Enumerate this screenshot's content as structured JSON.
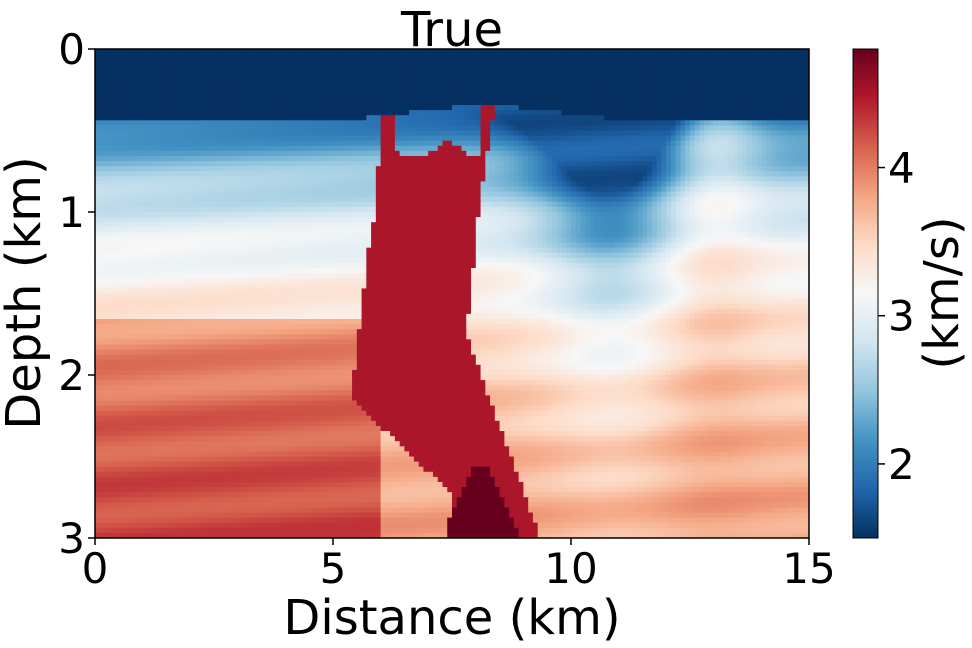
{
  "chart_data": {
    "type": "heatmap",
    "title": "True",
    "xlabel": "Distance (km)",
    "ylabel": "Depth (km)",
    "xlim": [
      0,
      15
    ],
    "ylim": [
      3,
      0
    ],
    "x_ticks": [
      "0",
      "5",
      "10",
      "15"
    ],
    "y_ticks": [
      "0",
      "1",
      "2",
      "3"
    ],
    "colorbar": {
      "label": "(km/s)",
      "range": [
        1.5,
        4.8
      ],
      "ticks": [
        "2",
        "3",
        "4"
      ],
      "colormap": "RdBu_r",
      "colors": [
        "#053061",
        "#2166ac",
        "#4393c3",
        "#92c5de",
        "#d1e5f0",
        "#f7f7f7",
        "#fddbc7",
        "#f4a582",
        "#d6604d",
        "#b2182b",
        "#67001f"
      ]
    },
    "grid": false,
    "notes": {
      "water_velocity": 1.5,
      "salt_velocity": 4.5,
      "deep_salt_velocity": 4.8
    }
  }
}
